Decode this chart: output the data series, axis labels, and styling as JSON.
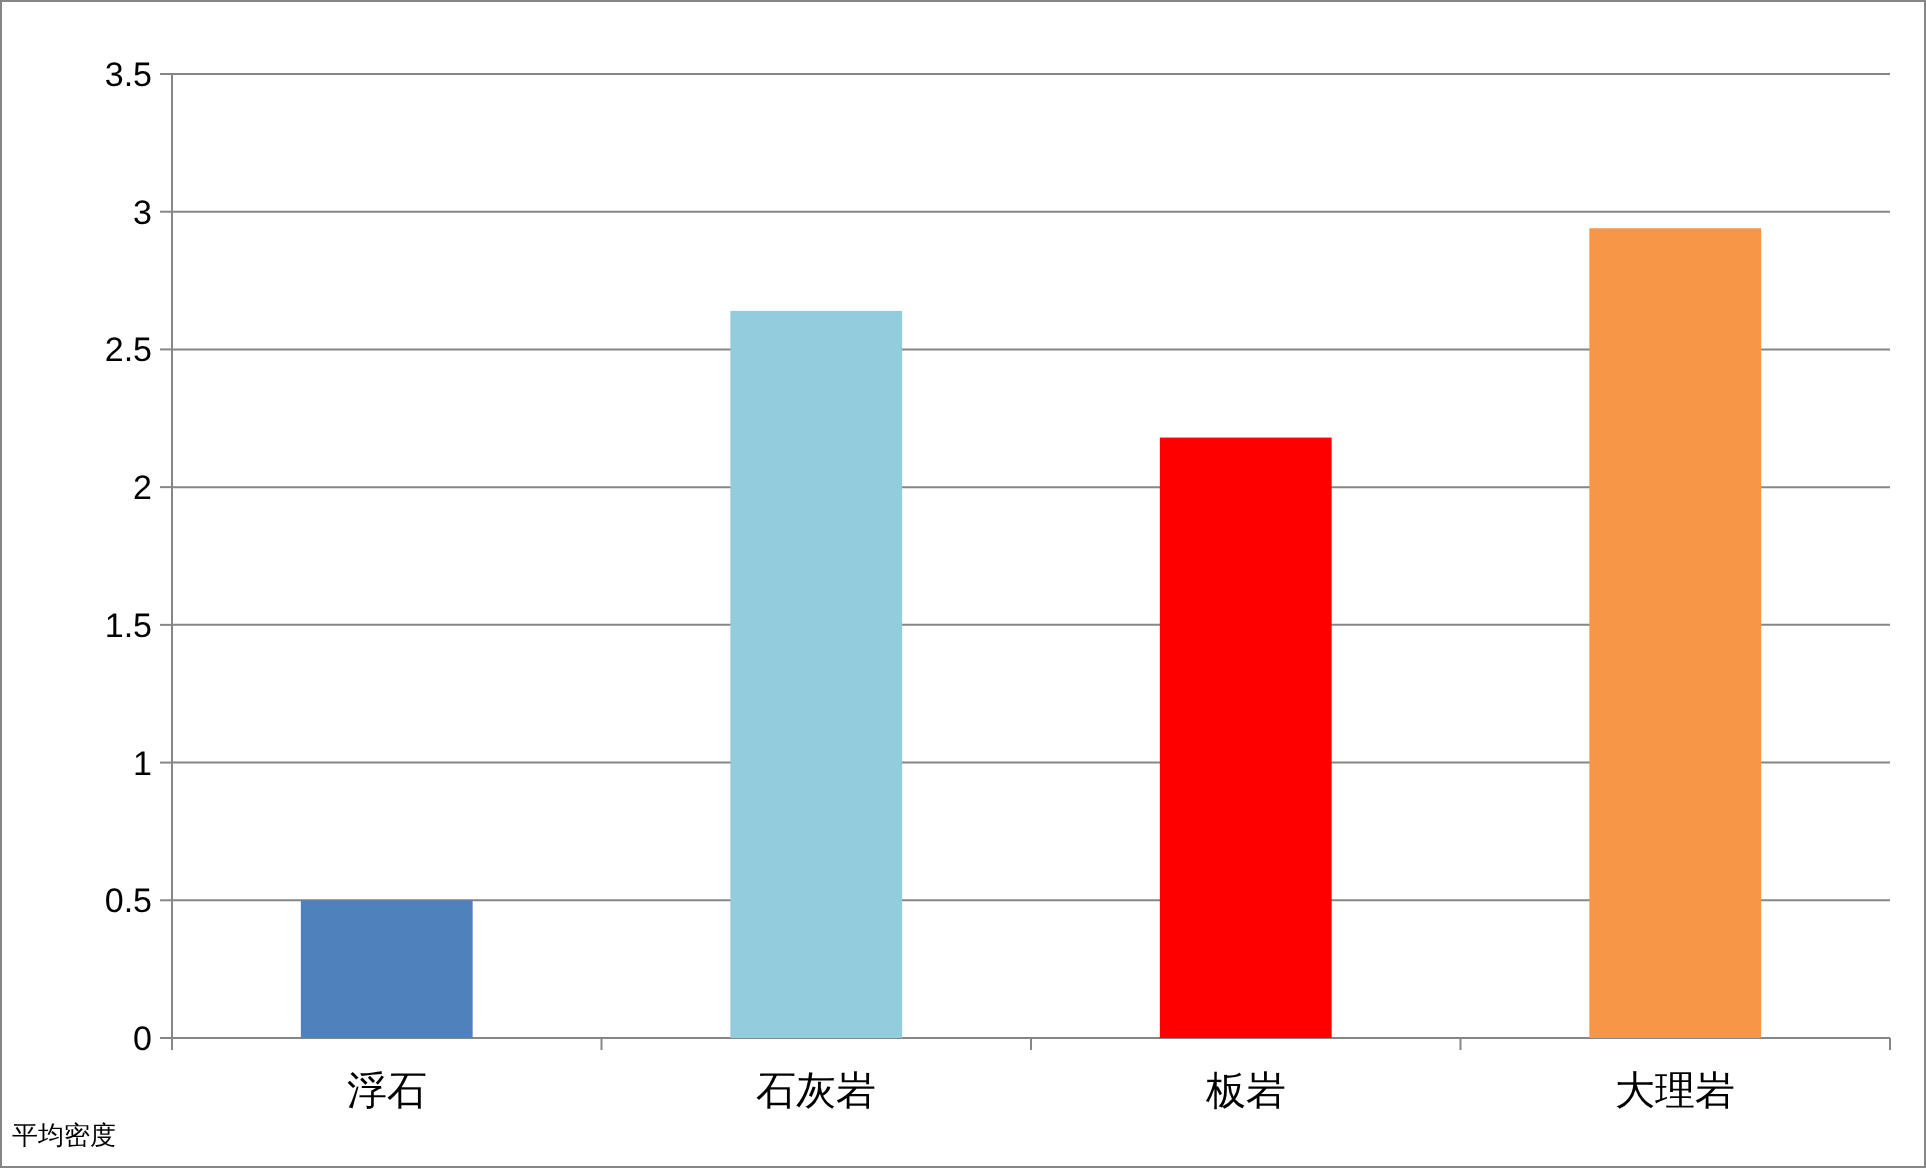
{
  "chart_data": {
    "type": "bar",
    "categories": [
      "浮石",
      "石灰岩",
      "板岩",
      "大理岩"
    ],
    "values": [
      0.5,
      2.64,
      2.18,
      2.94
    ],
    "colors": [
      "#4f81bd",
      "#93cddd",
      "#ff0000",
      "#f79646"
    ],
    "ylim": [
      0,
      3.5
    ],
    "yticks": [
      0,
      0.5,
      1,
      1.5,
      2,
      2.5,
      3,
      3.5
    ],
    "grid": "y",
    "annotations": [
      "平均密度"
    ]
  }
}
